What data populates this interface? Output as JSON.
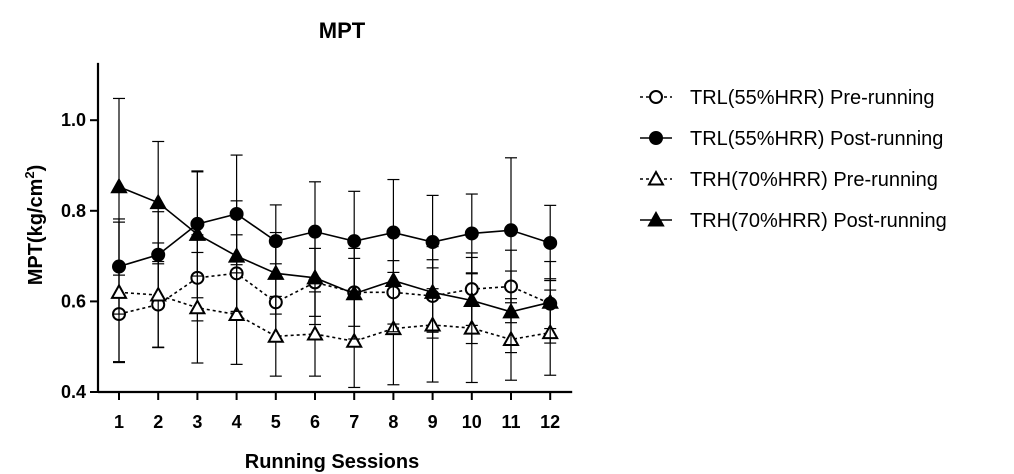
{
  "chart_data": {
    "type": "line",
    "title": "MPT",
    "xlabel": "Running Sessions",
    "ylabel": "MPT(kg/cm",
    "ylabel_superscript": "2",
    "ylabel_suffix": ")",
    "categories": [
      "1",
      "2",
      "3",
      "4",
      "5",
      "6",
      "7",
      "8",
      "9",
      "10",
      "11",
      "12"
    ],
    "x": [
      1,
      2,
      3,
      4,
      5,
      6,
      7,
      8,
      9,
      10,
      11,
      12
    ],
    "ylim": [
      0.4,
      1.1
    ],
    "yticks": [
      0.4,
      0.6,
      0.8,
      1.0
    ],
    "ytick_labels": [
      "0.4",
      "0.6",
      "0.8",
      "1.0"
    ],
    "grid": false,
    "legend_position": "right",
    "series": [
      {
        "name": "TRL(55%HRR) Pre-running",
        "marker": "circle-open",
        "line_style": "dashed",
        "color": "#000000",
        "values": [
          0.572,
          0.593,
          0.652,
          0.662,
          0.598,
          0.642,
          0.62,
          0.62,
          0.612,
          0.627,
          0.633,
          0.595
        ],
        "error": [
          0.105,
          0.095,
          0.095,
          0.085,
          0.085,
          0.075,
          0.075,
          0.07,
          0.08,
          0.08,
          0.08,
          0.055
        ]
      },
      {
        "name": "TRL(55%HRR) Post-running",
        "marker": "circle-filled",
        "line_style": "solid",
        "color": "#000000",
        "values": [
          0.677,
          0.703,
          0.771,
          0.793,
          0.733,
          0.754,
          0.733,
          0.752,
          0.731,
          0.75,
          0.757,
          0.729
        ],
        "error": [
          0.105,
          0.095,
          0.115,
          0.13,
          0.08,
          0.11,
          0.11,
          0.117,
          0.103,
          0.087,
          0.16,
          0.083
        ]
      },
      {
        "name": "TRH(70%HRR) Pre-running",
        "marker": "triangle-open",
        "line_style": "dashed",
        "color": "#000000",
        "values": [
          0.62,
          0.614,
          0.586,
          0.571,
          0.523,
          0.528,
          0.512,
          0.54,
          0.548,
          0.541,
          0.516,
          0.531
        ],
        "error": [
          0.155,
          0.115,
          0.122,
          0.11,
          0.088,
          0.093,
          0.102,
          0.124,
          0.126,
          0.12,
          0.09,
          0.094
        ]
      },
      {
        "name": "TRH(70%HRR) Post-running",
        "marker": "triangle-filled",
        "line_style": "solid",
        "color": "#000000",
        "values": [
          0.853,
          0.818,
          0.748,
          0.7,
          0.662,
          0.652,
          0.617,
          0.646,
          0.62,
          0.602,
          0.577,
          0.598
        ],
        "error": [
          0.195,
          0.135,
          0.14,
          0.122,
          0.09,
          0.103,
          0.1,
          0.113,
          0.101,
          0.095,
          0.09,
          0.09
        ]
      }
    ]
  }
}
